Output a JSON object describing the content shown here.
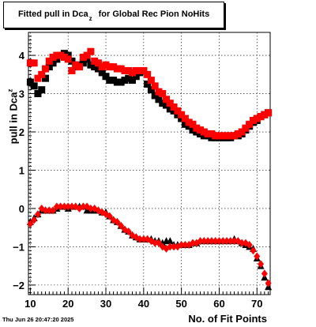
{
  "header": {
    "title_main": "Fitted pull in Dca",
    "title_sub": "z",
    "title_rest": "for Global Rec Pion NoHits"
  },
  "footer": {
    "timestamp": "Thu Jun 26 20:47:20 2025"
  },
  "chart_data": {
    "type": "scatter",
    "title": "Fitted pull in Dca_z for Global Rec Pion NoHits",
    "xlabel": "No. of Fit Points",
    "ylabel_main": "pull in Dca",
    "ylabel_sub": "z",
    "xlim": [
      9.5,
      73.5
    ],
    "ylim": [
      -2.25,
      4.6
    ],
    "xticks": [
      "10",
      "20",
      "30",
      "40",
      "50",
      "60",
      "70"
    ],
    "yticks": [
      "−2",
      "−1",
      "0",
      "1",
      "2",
      "3",
      "4"
    ],
    "grid": true,
    "colors": {
      "black_series": "#000000",
      "red_series": "#ff0000"
    },
    "series": [
      {
        "marker": "square",
        "color": "#000000",
        "x": [
          10,
          11,
          12,
          13,
          14,
          15,
          16,
          17,
          18,
          19,
          20,
          21,
          22,
          23,
          24,
          25,
          26,
          27,
          28,
          29,
          30,
          31,
          32,
          33,
          34,
          35,
          36,
          37,
          38,
          39,
          40,
          41,
          42,
          43,
          44,
          45,
          46,
          47,
          48,
          49,
          50,
          51,
          52,
          53,
          54,
          55,
          56,
          57,
          58,
          59,
          60,
          61,
          62,
          63,
          64,
          65,
          66,
          67,
          68,
          69,
          70,
          71,
          72,
          73
        ],
        "y": [
          3.3,
          3.2,
          3.0,
          3.1,
          3.4,
          3.7,
          3.8,
          3.9,
          4.0,
          4.05,
          4.0,
          3.85,
          3.7,
          3.75,
          3.8,
          3.9,
          3.75,
          3.7,
          3.65,
          3.55,
          3.45,
          3.35,
          3.35,
          3.3,
          3.3,
          3.35,
          3.4,
          3.35,
          3.45,
          3.55,
          3.6,
          3.25,
          3.1,
          2.95,
          2.85,
          2.75,
          2.7,
          2.6,
          2.55,
          2.45,
          2.35,
          2.2,
          2.15,
          2.05,
          2.0,
          1.95,
          1.9,
          1.9,
          1.85,
          1.85,
          1.85,
          1.85,
          1.85,
          1.85,
          1.9,
          1.9,
          1.95,
          2.05,
          2.15,
          2.25,
          2.3,
          2.4,
          2.45,
          2.5
        ]
      },
      {
        "marker": "square",
        "color": "#ff0000",
        "x": [
          10,
          11,
          12,
          13,
          14,
          15,
          16,
          17,
          18,
          19,
          20,
          21,
          22,
          23,
          24,
          25,
          26,
          27,
          28,
          29,
          30,
          31,
          32,
          33,
          34,
          35,
          36,
          37,
          38,
          39,
          40,
          41,
          42,
          43,
          44,
          45,
          46,
          47,
          48,
          49,
          50,
          51,
          52,
          53,
          54,
          55,
          56,
          57,
          58,
          59,
          60,
          61,
          62,
          63,
          64,
          65,
          66,
          67,
          68,
          69,
          70,
          71,
          72,
          73
        ],
        "y": [
          3.8,
          3.8,
          3.4,
          3.5,
          3.65,
          3.85,
          3.95,
          4.0,
          4.0,
          3.95,
          3.9,
          3.6,
          3.75,
          3.7,
          3.95,
          4.0,
          4.1,
          3.85,
          3.8,
          3.7,
          3.75,
          3.7,
          3.7,
          3.65,
          3.65,
          3.6,
          3.6,
          3.55,
          3.6,
          3.6,
          3.6,
          3.5,
          3.35,
          3.2,
          3.05,
          3.0,
          2.85,
          2.75,
          2.65,
          2.55,
          2.45,
          2.35,
          2.25,
          2.2,
          2.1,
          2.05,
          2.0,
          1.95,
          1.95,
          1.9,
          1.9,
          1.9,
          1.9,
          1.9,
          1.9,
          1.95,
          2.0,
          2.1,
          2.2,
          2.3,
          2.35,
          2.4,
          2.45,
          2.5
        ]
      },
      {
        "marker": "triangle",
        "color": "#000000",
        "x": [
          10,
          11,
          12,
          13,
          14,
          15,
          16,
          17,
          18,
          19,
          20,
          21,
          22,
          23,
          24,
          25,
          26,
          27,
          28,
          29,
          30,
          31,
          32,
          33,
          34,
          35,
          36,
          37,
          38,
          39,
          40,
          41,
          42,
          43,
          44,
          45,
          46,
          47,
          48,
          49,
          50,
          51,
          52,
          53,
          54,
          55,
          56,
          57,
          58,
          59,
          60,
          61,
          62,
          63,
          64,
          65,
          66,
          67,
          68,
          69,
          70,
          71,
          72,
          73
        ],
        "y": [
          -0.35,
          -0.25,
          -0.15,
          -0.05,
          -0.05,
          -0.05,
          -0.05,
          0.0,
          0.05,
          0.05,
          0.0,
          0.05,
          0.05,
          0.05,
          0.05,
          -0.05,
          -0.05,
          -0.05,
          -0.05,
          -0.1,
          -0.1,
          -0.2,
          -0.3,
          -0.35,
          -0.45,
          -0.55,
          -0.6,
          -0.7,
          -0.75,
          -0.8,
          -0.8,
          -0.8,
          -0.8,
          -0.85,
          -0.85,
          -0.9,
          -0.85,
          -0.85,
          -0.95,
          -0.95,
          -0.95,
          -0.95,
          -0.95,
          -0.9,
          -0.9,
          -0.85,
          -0.85,
          -0.85,
          -0.85,
          -0.85,
          -0.85,
          -0.85,
          -0.85,
          -0.85,
          -0.8,
          -0.85,
          -0.9,
          -0.95,
          -1.0,
          -1.05,
          -1.3,
          -1.5,
          -1.8,
          -2.05
        ]
      },
      {
        "marker": "diamond",
        "color": "#ff0000",
        "x": [
          10,
          11,
          12,
          13,
          14,
          15,
          16,
          17,
          18,
          19,
          20,
          21,
          22,
          23,
          24,
          25,
          26,
          27,
          28,
          29,
          30,
          31,
          32,
          33,
          34,
          35,
          36,
          37,
          38,
          39,
          40,
          41,
          42,
          43,
          44,
          45,
          46,
          47,
          48,
          49,
          50,
          51,
          52,
          53,
          54,
          55,
          56,
          57,
          58,
          59,
          60,
          61,
          62,
          63,
          64,
          65,
          66,
          67,
          68,
          69,
          70,
          71,
          72,
          73
        ],
        "y": [
          -0.4,
          -0.3,
          -0.15,
          0.0,
          -0.05,
          -0.05,
          -0.05,
          0.05,
          0.05,
          0.05,
          0.05,
          0.05,
          0.05,
          0.0,
          0.05,
          0.05,
          0.0,
          0.0,
          -0.05,
          -0.1,
          -0.15,
          -0.2,
          -0.3,
          -0.35,
          -0.45,
          -0.55,
          -0.6,
          -0.7,
          -0.75,
          -0.8,
          -0.8,
          -0.8,
          -0.85,
          -0.9,
          -0.9,
          -1.0,
          -1.05,
          -1.0,
          -1.0,
          -1.0,
          -0.95,
          -0.95,
          -0.95,
          -0.9,
          -0.9,
          -0.85,
          -0.85,
          -0.85,
          -0.85,
          -0.85,
          -0.85,
          -0.85,
          -0.85,
          -0.85,
          -0.85,
          -0.85,
          -0.9,
          -0.9,
          -0.95,
          -1.1,
          -1.25,
          -1.45,
          -1.7,
          -1.95
        ]
      }
    ]
  }
}
